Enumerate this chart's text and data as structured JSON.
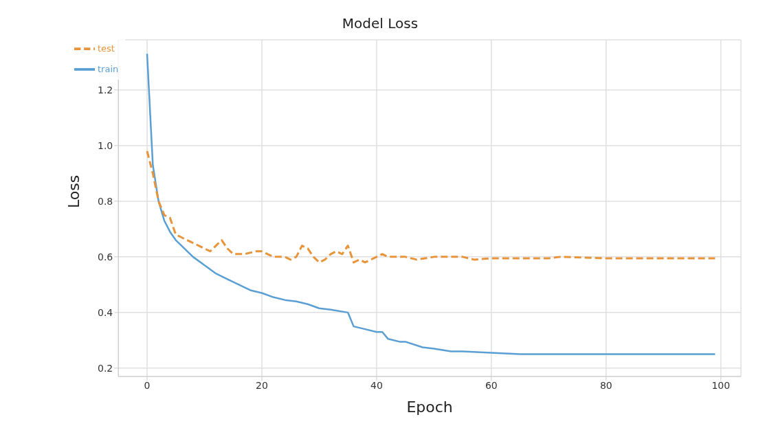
{
  "chart_data": {
    "type": "line",
    "title": "Model Loss",
    "xlabel": "Epoch",
    "ylabel": "Loss",
    "xlim": [
      -5,
      103.5
    ],
    "xticks": [
      0,
      20,
      40,
      60,
      80,
      100
    ],
    "ylim": [
      0.17,
      1.38
    ],
    "yticks": [
      {
        "value": 0.2,
        "label": "0.2"
      },
      {
        "value": 0.4,
        "label": "0.4"
      },
      {
        "value": 0.6,
        "label": "0.6"
      },
      {
        "value": 0.8,
        "label": "0.8"
      },
      {
        "value": 1.0,
        "label": "1.0"
      },
      {
        "value": 1.2,
        "label": "1.2"
      }
    ],
    "grid": true,
    "legend": "top left",
    "marker": "none",
    "series": [
      {
        "name": "train",
        "color": "#5a9fd4",
        "line_style": "solid",
        "x": [
          0,
          1,
          2,
          3,
          4,
          5,
          6,
          8,
          10,
          12,
          14,
          16,
          18,
          20,
          22,
          24,
          26,
          28,
          30,
          32,
          35,
          36,
          38,
          40,
          41,
          42,
          44,
          45,
          48,
          50,
          53,
          55,
          60,
          65,
          70,
          80,
          90,
          99
        ],
        "values": [
          1.33,
          0.93,
          0.8,
          0.73,
          0.69,
          0.66,
          0.64,
          0.6,
          0.57,
          0.54,
          0.52,
          0.5,
          0.48,
          0.47,
          0.455,
          0.445,
          0.44,
          0.43,
          0.415,
          0.41,
          0.4,
          0.35,
          0.34,
          0.33,
          0.33,
          0.305,
          0.295,
          0.295,
          0.275,
          0.27,
          0.26,
          0.26,
          0.255,
          0.25,
          0.25,
          0.25,
          0.25,
          0.25
        ]
      },
      {
        "name": "test",
        "color": "#e8943a",
        "line_style": "dashed",
        "x": [
          0,
          1,
          2,
          3,
          4,
          5,
          6,
          7,
          8,
          9,
          10,
          11,
          12,
          13,
          14,
          15,
          17,
          19,
          20,
          21,
          22,
          24,
          25,
          26,
          27,
          28,
          29,
          30,
          31,
          32,
          33,
          34,
          35,
          36,
          37,
          38,
          39,
          40,
          41,
          42,
          43,
          45,
          47,
          50,
          55,
          57,
          60,
          70,
          72,
          80,
          99
        ],
        "values": [
          0.98,
          0.9,
          0.8,
          0.75,
          0.74,
          0.68,
          0.67,
          0.66,
          0.65,
          0.64,
          0.63,
          0.62,
          0.64,
          0.66,
          0.63,
          0.61,
          0.61,
          0.62,
          0.62,
          0.61,
          0.6,
          0.6,
          0.59,
          0.6,
          0.64,
          0.63,
          0.6,
          0.58,
          0.59,
          0.61,
          0.62,
          0.61,
          0.64,
          0.58,
          0.59,
          0.58,
          0.59,
          0.6,
          0.61,
          0.6,
          0.6,
          0.6,
          0.59,
          0.6,
          0.6,
          0.59,
          0.595,
          0.595,
          0.6,
          0.595,
          0.595
        ]
      }
    ]
  }
}
